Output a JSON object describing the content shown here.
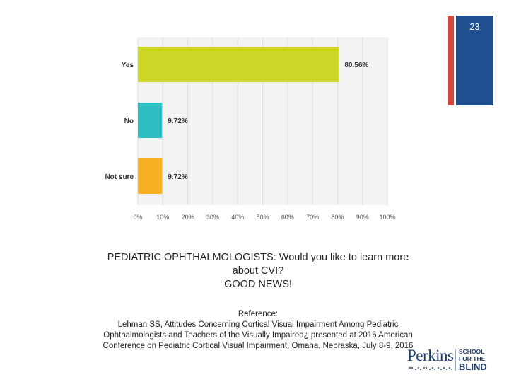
{
  "slide": {
    "number": "23",
    "accent_red": "#d9453a",
    "accent_blue": "#1f4f8f"
  },
  "chart_data": {
    "type": "bar",
    "orientation": "horizontal",
    "categories": [
      "Yes",
      "No",
      "Not sure"
    ],
    "values": [
      80.56,
      9.72,
      9.72
    ],
    "data_labels": [
      "80.56%",
      "9.72%",
      "9.72%"
    ],
    "colors": [
      "#cdd626",
      "#2fbec2",
      "#f7b122"
    ],
    "xlim": [
      0,
      100
    ],
    "x_ticks": [
      "0%",
      "10%",
      "20%",
      "30%",
      "40%",
      "50%",
      "60%",
      "70%",
      "80%",
      "90%",
      "100%"
    ],
    "grid": true,
    "background": "#f3f3f3"
  },
  "caption": {
    "line1": "PEDIATRIC OPHTHALMOLOGISTS: Would you like to learn more",
    "line2": "about CVI?",
    "line3": "GOOD NEWS!"
  },
  "reference": {
    "heading": "Reference:",
    "line1": "Lehman SS, Attitudes Concerning Cortical Visual Impairment Among Pediatric",
    "line2": "Ophthalmologists and Teachers of the Visually Impaired¿ presented at 2016 American",
    "line3": "Conference on Pediatric Cortical Visual Impairment, Omaha, Nebraska, July 8-9, 2016"
  },
  "logo": {
    "name": "Perkins",
    "school_line1": "SCHOOL",
    "school_line2": "FOR THE",
    "blind": "BLIND"
  }
}
